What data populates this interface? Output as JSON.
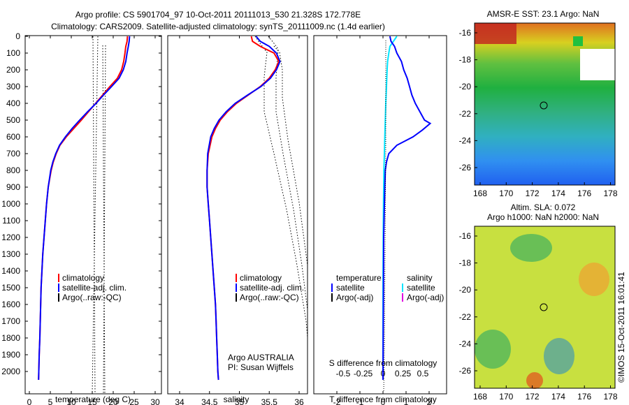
{
  "header": {
    "line1": "Argo profile: CS 5901704_97 10-Oct-2011 20111013_530 21.328S 172.778E",
    "line2": "Climatology: CARS2009. Satellite-adjusted climatology: synTS_20111009.nc (1.4d earlier)"
  },
  "depth_ticks": [
    "0",
    "100",
    "200",
    "300",
    "400",
    "500",
    "600",
    "700",
    "800",
    "900",
    "1000",
    "1100",
    "1200",
    "1300",
    "1400",
    "1500",
    "1600",
    "1700",
    "1800",
    "1900",
    "2000"
  ],
  "colors": {
    "climatology": "#ff0000",
    "satellite": "#0000ff",
    "satellite_salinity": "#00e5ff",
    "argo": "#000000",
    "argo_salinity": "#e000e0"
  },
  "panels": {
    "temperature": {
      "xlabel": "temperature (deg C)",
      "xticks": [
        "0",
        "5",
        "10",
        "15",
        "20",
        "25",
        "30"
      ],
      "legend": [
        "climatology",
        "satellite-adj. clim.",
        "Argo(..raw:-QC)"
      ]
    },
    "salinity": {
      "xlabel": "salinity",
      "xticks": [
        "34",
        "34.5",
        "35",
        "35.5",
        "36"
      ],
      "legend": [
        "climatology",
        "satellite-adj. clim.",
        "Argo(..raw:-QC)"
      ],
      "note1": "Argo AUSTRALIA",
      "note2": "PI: Susan Wijffels"
    },
    "difference": {
      "xlabel": "T difference from climatology",
      "top_label": "S difference from climatology",
      "xticks": [
        "-2",
        "-1",
        "0",
        "1",
        "2"
      ],
      "top_ticks": [
        "-0.5",
        "-0.25",
        "0",
        "0.25",
        "0.5"
      ],
      "legend_temp_title": "temperature",
      "legend_sal_title": "salinity",
      "legend_temp": [
        "satellite",
        "Argo(-adj)"
      ],
      "legend_sal": [
        "satellite",
        "Argo(-adj)"
      ]
    }
  },
  "maps": {
    "sst_title": "AMSR-E SST: 23.1  Argo: NaN",
    "sla_title1": "Altim. SLA: 0.072",
    "sla_title2": "Argo h1000: NaN h2000: NaN",
    "lat_ticks": [
      "-16",
      "-18",
      "-20",
      "-22",
      "-24",
      "-26"
    ],
    "lon_ticks": [
      "168",
      "170",
      "172",
      "174",
      "176",
      "178"
    ],
    "credit": "©IMOS 15-Oct-2011 16:01:41"
  },
  "chart_data": [
    {
      "type": "line",
      "title": "",
      "xlabel": "temperature (deg C)",
      "ylabel": "",
      "xlim": [
        -1,
        31
      ],
      "ylim": [
        2050,
        0
      ],
      "series": [
        {
          "name": "climatology",
          "color": "#ff0000",
          "depth": [
            0,
            30,
            60,
            100,
            150,
            200,
            250,
            300,
            350,
            400,
            450,
            500,
            550,
            600,
            650,
            700,
            750,
            800,
            900,
            1000,
            1100,
            1200,
            1300,
            1400,
            1500,
            1600,
            1700,
            1800,
            1900,
            2000,
            2050
          ],
          "values": [
            23.4,
            23.3,
            23.0,
            22.8,
            22.5,
            22.0,
            21.0,
            19.2,
            17.5,
            15.8,
            14.1,
            12.4,
            10.6,
            8.8,
            7.3,
            6.4,
            5.7,
            5.2,
            4.5,
            4.1,
            3.8,
            3.5,
            3.2,
            3.0,
            2.8,
            2.7,
            2.6,
            2.5,
            2.35,
            2.25,
            2.2
          ]
        },
        {
          "name": "satellite-adj. clim.",
          "color": "#0000ff",
          "depth": [
            0,
            30,
            60,
            100,
            150,
            200,
            250,
            300,
            350,
            400,
            450,
            500,
            550,
            600,
            650,
            700,
            750,
            800,
            900,
            1000,
            1100,
            1200,
            1300,
            1400,
            1500,
            1600,
            1700,
            1800,
            1900,
            2000,
            2050
          ],
          "values": [
            23.9,
            23.8,
            23.6,
            23.3,
            23.0,
            22.4,
            21.4,
            19.6,
            17.7,
            15.9,
            13.9,
            12.0,
            10.2,
            8.6,
            7.2,
            6.3,
            5.6,
            5.1,
            4.5,
            4.1,
            3.8,
            3.5,
            3.2,
            3.0,
            2.8,
            2.7,
            2.6,
            2.5,
            2.35,
            2.25,
            2.2
          ]
        }
      ]
    },
    {
      "type": "line",
      "title": "",
      "xlabel": "salinity",
      "ylabel": "",
      "xlim": [
        33.8,
        36.1
      ],
      "ylim": [
        2050,
        0
      ],
      "series": [
        {
          "name": "climatology",
          "color": "#ff0000",
          "depth": [
            0,
            30,
            60,
            100,
            150,
            200,
            250,
            300,
            350,
            400,
            450,
            500,
            550,
            600,
            700,
            800,
            900,
            1000,
            1100,
            1200,
            1300,
            1400,
            1500,
            1600,
            1700,
            1800,
            1900,
            2000,
            2050
          ],
          "values": [
            35.2,
            35.22,
            35.35,
            35.58,
            35.66,
            35.6,
            35.5,
            35.35,
            35.15,
            34.95,
            34.8,
            34.68,
            34.6,
            34.54,
            34.48,
            34.46,
            34.46,
            34.48,
            34.5,
            34.52,
            34.54,
            34.56,
            34.58,
            34.6,
            34.61,
            34.62,
            34.63,
            34.64,
            34.65
          ]
        },
        {
          "name": "satellite-adj. clim.",
          "color": "#0000ff",
          "depth": [
            0,
            30,
            60,
            100,
            150,
            200,
            250,
            300,
            350,
            400,
            450,
            500,
            550,
            600,
            700,
            800,
            900,
            1000,
            1100,
            1200,
            1300,
            1400,
            1500,
            1600,
            1700,
            1800,
            1900,
            2000,
            2050
          ],
          "values": [
            35.28,
            35.35,
            35.5,
            35.62,
            35.68,
            35.62,
            35.52,
            35.36,
            35.14,
            34.93,
            34.78,
            34.66,
            34.58,
            34.52,
            34.47,
            34.46,
            34.46,
            34.48,
            34.5,
            34.52,
            34.54,
            34.56,
            34.58,
            34.6,
            34.61,
            34.62,
            34.63,
            34.64,
            34.65
          ]
        }
      ]
    },
    {
      "type": "line",
      "title": "",
      "xlabel": "T difference from climatology",
      "ylabel": "",
      "xlim": [
        -2.5,
        3.2
      ],
      "ylim": [
        2050,
        0
      ],
      "series": [
        {
          "name": "temperature satellite",
          "color": "#0000ff",
          "depth": [
            0,
            30,
            60,
            100,
            150,
            200,
            250,
            300,
            350,
            400,
            450,
            500,
            520,
            560,
            600,
            650,
            700,
            750,
            800,
            900,
            1000,
            1200,
            1500,
            1800,
            2050
          ],
          "values": [
            0.3,
            0.35,
            0.5,
            0.6,
            0.8,
            0.9,
            1.05,
            1.15,
            1.25,
            1.4,
            1.6,
            1.8,
            2.05,
            1.7,
            1.3,
            0.6,
            0.25,
            0.15,
            0.1,
            0.08,
            0.06,
            0.03,
            0.02,
            0.01,
            0.0
          ]
        },
        {
          "name": "salinity satellite",
          "color": "#00e5ff",
          "depth": [
            0,
            30,
            60,
            100,
            150,
            200,
            300,
            400,
            500,
            600,
            700,
            800,
            900,
            1000,
            1200,
            1500,
            1800,
            2050
          ],
          "values": [
            0.6,
            0.45,
            0.3,
            0.25,
            0.2,
            0.18,
            0.15,
            0.12,
            0.1,
            0.08,
            0.06,
            0.04,
            0.03,
            0.02,
            0.01,
            0.0,
            0.0,
            0.0
          ]
        }
      ]
    }
  ]
}
